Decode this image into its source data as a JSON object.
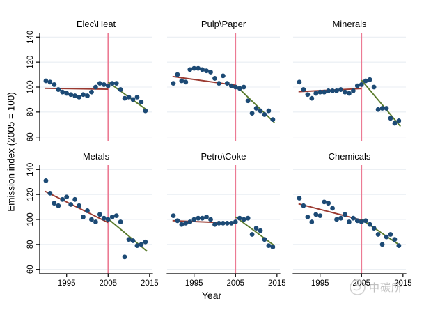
{
  "figure": {
    "watermark": "中碳所"
  },
  "axes": {
    "ylabel": "Emission index (2005 = 100)",
    "xlabel": "Year",
    "x_ticks": [
      1995,
      2005,
      2015
    ],
    "y_ticks": [
      60,
      80,
      100,
      120,
      140
    ],
    "x_range": [
      1988.5,
      2015.7
    ],
    "y_range": [
      56.5,
      143.5
    ],
    "event_year": 2005,
    "grid": "horizontal-only",
    "y_tick_label_angle": -90
  },
  "colors": {
    "point": "#1c4a75",
    "pre_fit_line": "#9b3a31",
    "post_fit_line": "#5a7b2c",
    "event_line": "#ec7a93",
    "gridline": "#e9eef3",
    "axis": "#000000",
    "watermark": "#c4c4c4"
  },
  "chart_data": [
    {
      "type": "scatter",
      "title": "Elec\\Heat",
      "x": [
        1990,
        1991,
        1992,
        1993,
        1994,
        1995,
        1996,
        1997,
        1998,
        1999,
        2000,
        2001,
        2002,
        2003,
        2004,
        2005,
        2006,
        2007,
        2008,
        2009,
        2010,
        2011,
        2012,
        2013,
        2014
      ],
      "y": [
        105,
        104,
        102,
        98,
        96,
        95,
        94,
        93,
        92,
        94,
        93,
        96,
        100,
        103,
        102,
        101,
        103,
        103,
        98,
        91,
        92,
        90,
        92,
        88,
        81
      ],
      "pre_2005_fit": {
        "x": [
          1989.8,
          2005
        ],
        "y": [
          99,
          98.3
        ]
      },
      "post_2005_fit": {
        "x": [
          2005,
          2014.4
        ],
        "y": [
          104,
          81.5
        ]
      },
      "vline_x": 2005
    },
    {
      "type": "scatter",
      "title": "Pulp\\Paper",
      "x": [
        1990,
        1991,
        1992,
        1993,
        1994,
        1995,
        1996,
        1997,
        1998,
        1999,
        2000,
        2001,
        2002,
        2003,
        2004,
        2005,
        2006,
        2007,
        2008,
        2009,
        2010,
        2011,
        2012,
        2013,
        2014
      ],
      "y": [
        103,
        110,
        105,
        104,
        114,
        115,
        115,
        114,
        113,
        112,
        107,
        103,
        109,
        103,
        101,
        100,
        99,
        100,
        89,
        79,
        83,
        81,
        78,
        81,
        74
      ],
      "pre_2005_fit": {
        "x": [
          1989.8,
          2005
        ],
        "y": [
          108.5,
          101.5
        ]
      },
      "post_2005_fit": {
        "x": [
          2005,
          2014.4
        ],
        "y": [
          101.5,
          71.5
        ]
      },
      "vline_x": 2005
    },
    {
      "type": "scatter",
      "title": "Minerals",
      "x": [
        1990,
        1991,
        1992,
        1993,
        1994,
        1995,
        1996,
        1997,
        1998,
        1999,
        2000,
        2001,
        2002,
        2003,
        2004,
        2005,
        2006,
        2007,
        2008,
        2009,
        2010,
        2011,
        2012,
        2013,
        2014
      ],
      "y": [
        104,
        98,
        94,
        91,
        95,
        96,
        96,
        97,
        97,
        97,
        98,
        96,
        95,
        97,
        101,
        102,
        105,
        106,
        100,
        82,
        83,
        83,
        75,
        71,
        73
      ],
      "pre_2005_fit": {
        "x": [
          1989.8,
          2005
        ],
        "y": [
          96.3,
          98.8
        ]
      },
      "post_2005_fit": {
        "x": [
          2005,
          2014.4
        ],
        "y": [
          105.5,
          68.5
        ]
      },
      "vline_x": 2005
    },
    {
      "type": "scatter",
      "title": "Metals",
      "x": [
        1990,
        1991,
        1992,
        1993,
        1994,
        1995,
        1996,
        1997,
        1998,
        1999,
        2000,
        2001,
        2002,
        2003,
        2004,
        2005,
        2006,
        2007,
        2008,
        2009,
        2010,
        2011,
        2012,
        2013,
        2014
      ],
      "y": [
        131,
        121,
        113,
        111,
        116,
        118,
        112,
        116,
        111,
        102,
        107,
        100,
        98,
        104,
        101,
        100,
        102,
        103,
        98,
        70,
        84,
        83,
        79,
        80,
        82
      ],
      "pre_2005_fit": {
        "x": [
          1989.8,
          2005
        ],
        "y": [
          122.5,
          97.5
        ]
      },
      "post_2005_fit": {
        "x": [
          2005,
          2014.4
        ],
        "y": [
          100.5,
          74.5
        ]
      },
      "vline_x": 2005
    },
    {
      "type": "scatter",
      "title": "Petro\\Coke",
      "x": [
        1990,
        1991,
        1992,
        1993,
        1994,
        1995,
        1996,
        1997,
        1998,
        1999,
        2000,
        2001,
        2002,
        2003,
        2004,
        2005,
        2006,
        2007,
        2008,
        2009,
        2010,
        2011,
        2012,
        2013,
        2014
      ],
      "y": [
        103,
        99,
        96,
        97,
        98,
        100,
        101,
        101,
        102,
        100,
        96,
        97,
        97,
        97,
        97,
        98,
        101,
        100,
        101,
        88,
        93,
        91,
        84,
        79,
        78
      ],
      "pre_2005_fit": {
        "x": [
          1989.8,
          2005
        ],
        "y": [
          99,
          97
        ]
      },
      "post_2005_fit": {
        "x": [
          2005,
          2014.4
        ],
        "y": [
          102,
          79
        ]
      },
      "vline_x": 2005
    },
    {
      "type": "scatter",
      "title": "Chemicals",
      "x": [
        1990,
        1991,
        1992,
        1993,
        1994,
        1995,
        1996,
        1997,
        1998,
        1999,
        2000,
        2001,
        2002,
        2003,
        2004,
        2005,
        2006,
        2007,
        2008,
        2009,
        2010,
        2011,
        2012,
        2013,
        2014
      ],
      "y": [
        117,
        111,
        102,
        98,
        104,
        103,
        114,
        113,
        109,
        100,
        101,
        104,
        98,
        101,
        99,
        98,
        99,
        96,
        93,
        88,
        80,
        86,
        88,
        84,
        79
      ],
      "pre_2005_fit": {
        "x": [
          1989.8,
          2005
        ],
        "y": [
          112.5,
          99.5
        ]
      },
      "post_2005_fit": {
        "x": [
          2005,
          2014.4
        ],
        "y": [
          100,
          79
        ]
      },
      "vline_x": 2005
    }
  ]
}
